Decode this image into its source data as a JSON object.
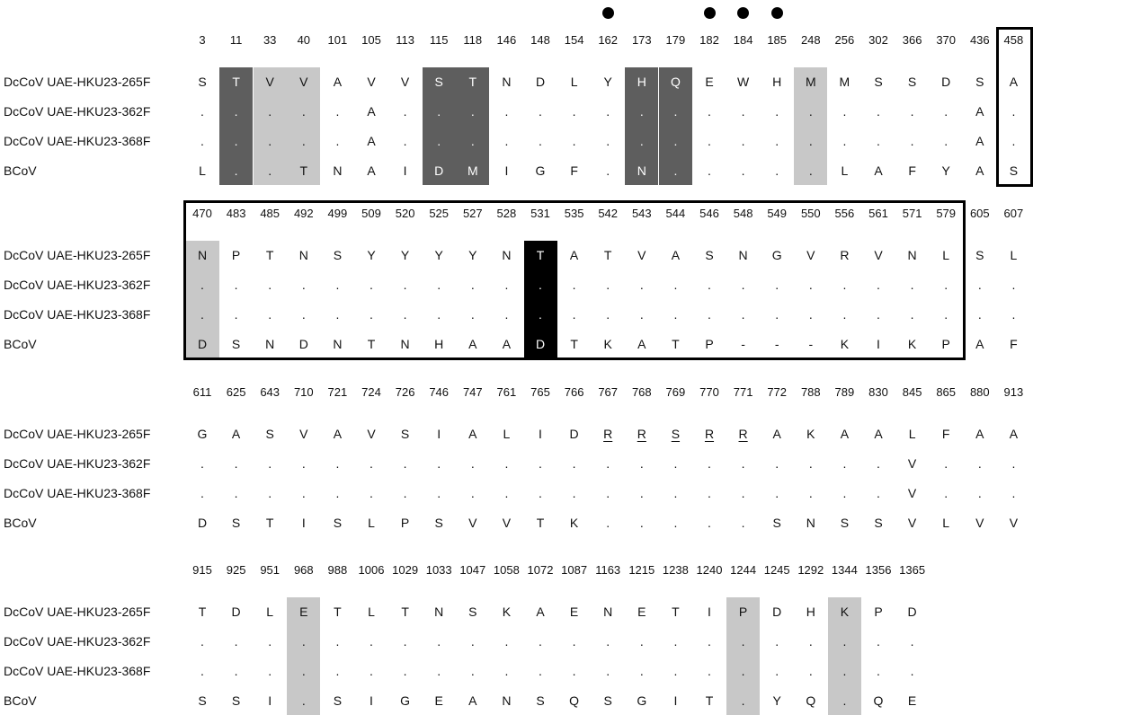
{
  "sequences": [
    "DcCoV UAE-HKU23-265F",
    "DcCoV UAE-HKU23-362F",
    "DcCoV UAE-HKU23-368F",
    "BCoV"
  ],
  "blocks": [
    {
      "positions": [
        "3",
        "11",
        "33",
        "40",
        "101",
        "105",
        "113",
        "115",
        "118",
        "146",
        "148",
        "154",
        "162",
        "173",
        "179",
        "182",
        "184",
        "185",
        "248",
        "256",
        "302",
        "366",
        "370",
        "436",
        "458"
      ],
      "rows": [
        [
          "S",
          "T",
          "V",
          "V",
          "A",
          "V",
          "V",
          "S",
          "T",
          "N",
          "D",
          "L",
          "Y",
          "H",
          "Q",
          "E",
          "W",
          "H",
          "M",
          "M",
          "S",
          "S",
          "D",
          "S",
          "A"
        ],
        [
          ".",
          ".",
          ".",
          ".",
          ".",
          "A",
          ".",
          ".",
          ".",
          ".",
          ".",
          ".",
          ".",
          ".",
          ".",
          ".",
          ".",
          ".",
          ".",
          ".",
          ".",
          ".",
          ".",
          "A",
          "."
        ],
        [
          ".",
          ".",
          ".",
          ".",
          ".",
          "A",
          ".",
          ".",
          ".",
          ".",
          ".",
          ".",
          ".",
          ".",
          ".",
          ".",
          ".",
          ".",
          ".",
          ".",
          ".",
          ".",
          ".",
          "A",
          "."
        ],
        [
          "L",
          ".",
          ".",
          "T",
          "N",
          "A",
          "I",
          "D",
          "M",
          "I",
          "G",
          "F",
          ".",
          "N",
          ".",
          ".",
          ".",
          ".",
          ".",
          "L",
          "A",
          "F",
          "Y",
          "A",
          "S"
        ]
      ]
    },
    {
      "positions": [
        "470",
        "483",
        "485",
        "492",
        "499",
        "509",
        "520",
        "525",
        "527",
        "528",
        "531",
        "535",
        "542",
        "543",
        "544",
        "546",
        "548",
        "549",
        "550",
        "556",
        "561",
        "571",
        "579",
        "605",
        "607"
      ],
      "rows": [
        [
          "N",
          "P",
          "T",
          "N",
          "S",
          "Y",
          "Y",
          "Y",
          "Y",
          "N",
          "T",
          "A",
          "T",
          "V",
          "A",
          "S",
          "N",
          "G",
          "V",
          "R",
          "V",
          "N",
          "L",
          "S",
          "L"
        ],
        [
          ".",
          ".",
          ".",
          ".",
          ".",
          ".",
          ".",
          ".",
          ".",
          ".",
          ".",
          ".",
          ".",
          ".",
          ".",
          ".",
          ".",
          ".",
          ".",
          ".",
          ".",
          ".",
          ".",
          ".",
          "."
        ],
        [
          ".",
          ".",
          ".",
          ".",
          ".",
          ".",
          ".",
          ".",
          ".",
          ".",
          ".",
          ".",
          ".",
          ".",
          ".",
          ".",
          ".",
          ".",
          ".",
          ".",
          ".",
          ".",
          ".",
          ".",
          "."
        ],
        [
          "D",
          "S",
          "N",
          "D",
          "N",
          "T",
          "N",
          "H",
          "A",
          "A",
          "D",
          "T",
          "K",
          "A",
          "T",
          "P",
          "-",
          "-",
          "-",
          "K",
          "I",
          "K",
          "P",
          "A",
          "F"
        ]
      ]
    },
    {
      "positions": [
        "611",
        "625",
        "643",
        "710",
        "721",
        "724",
        "726",
        "746",
        "747",
        "761",
        "765",
        "766",
        "767",
        "768",
        "769",
        "770",
        "771",
        "772",
        "788",
        "789",
        "830",
        "845",
        "865",
        "880",
        "913"
      ],
      "rows": [
        [
          "G",
          "A",
          "S",
          "V",
          "A",
          "V",
          "S",
          "I",
          "A",
          "L",
          "I",
          "D",
          "R",
          "R",
          "S",
          "R",
          "R",
          "A",
          "K",
          "A",
          "A",
          "L",
          "F",
          "A",
          "A"
        ],
        [
          ".",
          ".",
          ".",
          ".",
          ".",
          ".",
          ".",
          ".",
          ".",
          ".",
          ".",
          ".",
          ".",
          ".",
          ".",
          ".",
          ".",
          ".",
          ".",
          ".",
          ".",
          "V",
          ".",
          ".",
          "."
        ],
        [
          ".",
          ".",
          ".",
          ".",
          ".",
          ".",
          ".",
          ".",
          ".",
          ".",
          ".",
          ".",
          ".",
          ".",
          ".",
          ".",
          ".",
          ".",
          ".",
          ".",
          ".",
          "V",
          ".",
          ".",
          "."
        ],
        [
          "D",
          "S",
          "T",
          "I",
          "S",
          "L",
          "P",
          "S",
          "V",
          "V",
          "T",
          "K",
          ".",
          ".",
          ".",
          ".",
          ".",
          "S",
          "N",
          "S",
          "S",
          "V",
          "L",
          "V",
          "V"
        ]
      ]
    },
    {
      "positions": [
        "915",
        "925",
        "951",
        "968",
        "988",
        "1006",
        "1029",
        "1033",
        "1047",
        "1058",
        "1072",
        "1087",
        "1163",
        "1215",
        "1238",
        "1240",
        "1244",
        "1245",
        "1292",
        "1344",
        "1356",
        "1365"
      ],
      "rows": [
        [
          "T",
          "D",
          "L",
          "E",
          "T",
          "L",
          "T",
          "N",
          "S",
          "K",
          "A",
          "E",
          "N",
          "E",
          "T",
          "I",
          "P",
          "D",
          "H",
          "K",
          "P",
          "D"
        ],
        [
          ".",
          ".",
          ".",
          ".",
          ".",
          ".",
          ".",
          ".",
          ".",
          ".",
          ".",
          ".",
          ".",
          ".",
          ".",
          ".",
          ".",
          ".",
          ".",
          ".",
          ".",
          "."
        ],
        [
          ".",
          ".",
          ".",
          ".",
          ".",
          ".",
          ".",
          ".",
          ".",
          ".",
          ".",
          ".",
          ".",
          ".",
          ".",
          ".",
          ".",
          ".",
          ".",
          ".",
          ".",
          "."
        ],
        [
          "S",
          "S",
          "I",
          ".",
          "S",
          "I",
          "G",
          "E",
          "A",
          "N",
          "S",
          "Q",
          "S",
          "G",
          "I",
          "T",
          ".",
          "Y",
          "Q",
          ".",
          "Q",
          "E"
        ]
      ]
    }
  ],
  "shading": {
    "dark_columns": [
      [
        1,
        7,
        8,
        13,
        14
      ],
      [],
      [],
      []
    ],
    "light_columns": [
      [
        2,
        3,
        18
      ],
      [
        0
      ],
      [],
      [
        3,
        16,
        19
      ]
    ],
    "black_columns": [
      [],
      [
        10
      ],
      [],
      []
    ],
    "dark_color": "#5e5e5e",
    "light_color": "#c8c8c8",
    "black_color": "#000000"
  },
  "underlined_ref_cells": {
    "block": 2,
    "columns": [
      12,
      13,
      14,
      15,
      16
    ]
  },
  "dot_markers_above_columns": [
    12,
    15,
    16,
    17
  ]
}
